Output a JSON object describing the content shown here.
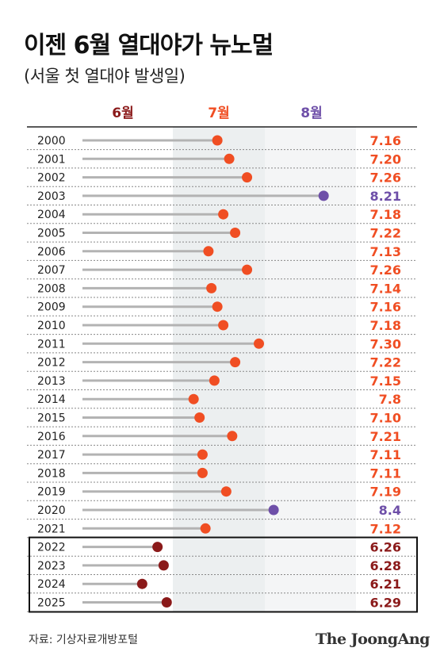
{
  "title": "이젠 6월 열대야가 뉴노멀",
  "subtitle": "(서울 첫 열대야 발생일)",
  "source": "자료: 기상자료개방포털",
  "logo": "The JoongAng",
  "colors": {
    "june_dark": "#8b1a1a",
    "july_orange": "#f04e23",
    "august_purple": "#6e4fa8",
    "stem_gray": "#b3b3b3",
    "july_band": "#eceff0",
    "aug_band": "#f4f5f6"
  },
  "chart_data": {
    "type": "dot-plot",
    "month_headers": [
      {
        "label": "6월",
        "color": "#8b1a1a"
      },
      {
        "label": "7월",
        "color": "#f04e23"
      },
      {
        "label": "8월",
        "color": "#6e4fa8"
      }
    ],
    "rows": [
      {
        "year": "2000",
        "month": 7,
        "day": 16,
        "label": "7.16"
      },
      {
        "year": "2001",
        "month": 7,
        "day": 20,
        "label": "7.20"
      },
      {
        "year": "2002",
        "month": 7,
        "day": 26,
        "label": "7.26"
      },
      {
        "year": "2003",
        "month": 8,
        "day": 21,
        "label": "8.21"
      },
      {
        "year": "2004",
        "month": 7,
        "day": 18,
        "label": "7.18"
      },
      {
        "year": "2005",
        "month": 7,
        "day": 22,
        "label": "7.22"
      },
      {
        "year": "2006",
        "month": 7,
        "day": 13,
        "label": "7.13"
      },
      {
        "year": "2007",
        "month": 7,
        "day": 26,
        "label": "7.26"
      },
      {
        "year": "2008",
        "month": 7,
        "day": 14,
        "label": "7.14"
      },
      {
        "year": "2009",
        "month": 7,
        "day": 16,
        "label": "7.16"
      },
      {
        "year": "2010",
        "month": 7,
        "day": 18,
        "label": "7.18"
      },
      {
        "year": "2011",
        "month": 7,
        "day": 30,
        "label": "7.30"
      },
      {
        "year": "2012",
        "month": 7,
        "day": 22,
        "label": "7.22"
      },
      {
        "year": "2013",
        "month": 7,
        "day": 15,
        "label": "7.15"
      },
      {
        "year": "2014",
        "month": 7,
        "day": 8,
        "label": "7.8"
      },
      {
        "year": "2015",
        "month": 7,
        "day": 10,
        "label": "7.10"
      },
      {
        "year": "2016",
        "month": 7,
        "day": 21,
        "label": "7.21"
      },
      {
        "year": "2017",
        "month": 7,
        "day": 11,
        "label": "7.11"
      },
      {
        "year": "2018",
        "month": 7,
        "day": 11,
        "label": "7.11"
      },
      {
        "year": "2019",
        "month": 7,
        "day": 19,
        "label": "7.19"
      },
      {
        "year": "2020",
        "month": 8,
        "day": 4,
        "label": "8.4"
      },
      {
        "year": "2021",
        "month": 7,
        "day": 12,
        "label": "7.12"
      },
      {
        "year": "2022",
        "month": 6,
        "day": 26,
        "label": "6.26"
      },
      {
        "year": "2023",
        "month": 6,
        "day": 28,
        "label": "6.28"
      },
      {
        "year": "2024",
        "month": 6,
        "day": 21,
        "label": "6.21"
      },
      {
        "year": "2025",
        "month": 6,
        "day": 29,
        "label": "6.29"
      }
    ]
  }
}
